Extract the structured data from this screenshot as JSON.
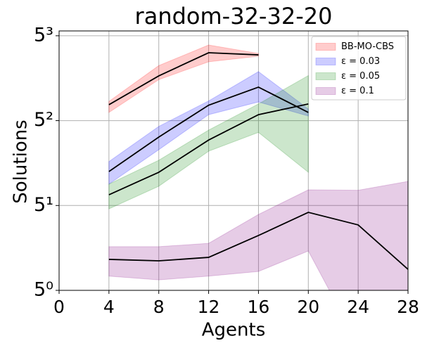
{
  "chart_data": {
    "type": "line",
    "title": "random-32-32-20",
    "x_label": "Agents",
    "y_label": "Solutions",
    "x": [
      4,
      8,
      12,
      16,
      20,
      24,
      28
    ],
    "xlim": [
      0,
      28
    ],
    "xticks": [
      0,
      4,
      8,
      12,
      16,
      20,
      24,
      28
    ],
    "ylim": [
      1,
      137
    ],
    "y_scale": "log",
    "y_log_base": 5,
    "yticks": [
      {
        "value": 1,
        "label": "5⁰"
      },
      {
        "value": 5,
        "label": "5¹"
      },
      {
        "value": 25,
        "label": "5²"
      },
      {
        "value": 125,
        "label": "5³"
      }
    ],
    "grid": true,
    "legend_position": "upper right",
    "line_color": "#000000",
    "series": [
      {
        "name": "BB-MO-CBS",
        "color": "#ff0000",
        "values": [
          33.8,
          58.4,
          90.6,
          87,
          null,
          null,
          null
        ],
        "lower": [
          29.2,
          54.4,
          76.3,
          84.8,
          null,
          null,
          null
        ],
        "upper": [
          36.0,
          71,
          104.9,
          89.4,
          null,
          null,
          null
        ]
      },
      {
        "name": "ε = 0.03",
        "color": "#0000ff",
        "values": [
          9.52,
          18.3,
          33.5,
          47.2,
          29.2,
          null,
          null
        ],
        "lower": [
          7.5,
          14.4,
          28.0,
          35.6,
          27.3,
          null,
          null
        ],
        "upper": [
          11.5,
          22.4,
          36.3,
          63.3,
          31.2,
          null,
          null
        ]
      },
      {
        "name": "ε = 0.05",
        "color": "#008000",
        "values": [
          6.13,
          9.39,
          17.3,
          28.0,
          34.3,
          null,
          null
        ],
        "lower": [
          4.69,
          7.2,
          14.0,
          20.0,
          9.39,
          null,
          null
        ],
        "upper": [
          7.5,
          11.8,
          20.9,
          34.3,
          58.8,
          null,
          null
        ]
      },
      {
        "name": "ε = 0.1",
        "color": "#800080",
        "values": [
          1.8,
          1.75,
          1.87,
          2.83,
          4.39,
          3.46,
          1.49
        ],
        "lower": [
          1.31,
          1.22,
          1.31,
          1.43,
          2.11,
          0.36,
          0.36
        ],
        "upper": [
          2.29,
          2.29,
          2.44,
          4.22,
          6.73,
          6.67,
          7.9
        ]
      }
    ]
  }
}
